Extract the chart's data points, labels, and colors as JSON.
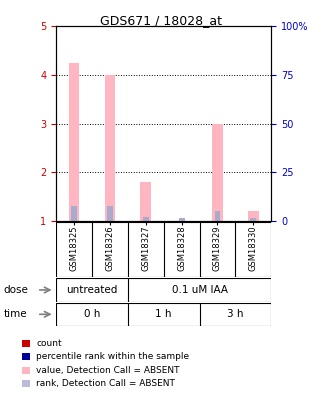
{
  "title": "GDS671 / 18028_at",
  "samples": [
    "GSM18325",
    "GSM18326",
    "GSM18327",
    "GSM18328",
    "GSM18329",
    "GSM18330"
  ],
  "pink_bar_heights": [
    4.25,
    4.0,
    1.8,
    1.0,
    3.0,
    1.2
  ],
  "blue_bar_heights": [
    1.3,
    1.3,
    1.08,
    1.05,
    1.2,
    1.05
  ],
  "pink_bar_color": "#FFB6C1",
  "blue_bar_color": "#AAAACC",
  "ylim_left": [
    1,
    5
  ],
  "ylim_right": [
    0,
    100
  ],
  "yticks_left": [
    1,
    2,
    3,
    4,
    5
  ],
  "yticks_right": [
    0,
    25,
    50,
    75,
    100
  ],
  "ytick_labels_right": [
    "0",
    "25",
    "50",
    "75",
    "100%"
  ],
  "left_tick_color": "#CC0000",
  "right_tick_color": "#0000CC",
  "dose_color": "#66CC66",
  "time_color": "#CC66CC",
  "sample_bg": "#CCCCCC",
  "legend_items": [
    {
      "color": "#CC0000",
      "label": "count"
    },
    {
      "color": "#000099",
      "label": "percentile rank within the sample"
    },
    {
      "color": "#FFB6C1",
      "label": "value, Detection Call = ABSENT"
    },
    {
      "color": "#BBBBDD",
      "label": "rank, Detection Call = ABSENT"
    }
  ],
  "bg_color": "#FFFFFF"
}
